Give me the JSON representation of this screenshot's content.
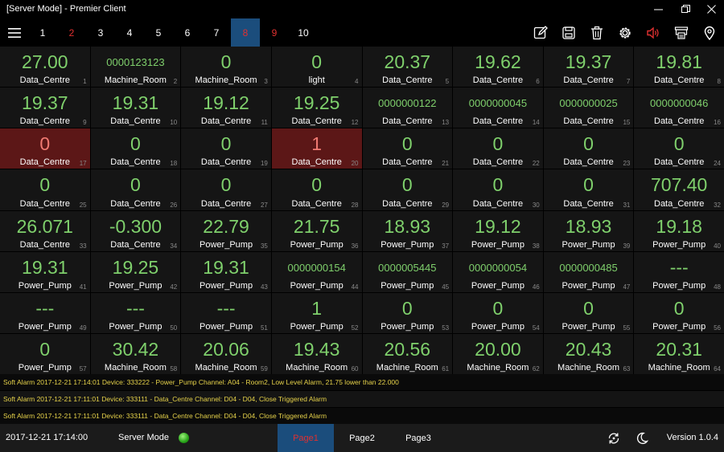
{
  "window": {
    "title": "[Server Mode] - Premier Client"
  },
  "toolbar": {
    "page_tabs": [
      {
        "label": "1",
        "state": "normal"
      },
      {
        "label": "2",
        "state": "alarm"
      },
      {
        "label": "3",
        "state": "normal"
      },
      {
        "label": "4",
        "state": "normal"
      },
      {
        "label": "5",
        "state": "normal"
      },
      {
        "label": "6",
        "state": "normal"
      },
      {
        "label": "7",
        "state": "normal"
      },
      {
        "label": "8",
        "state": "active"
      },
      {
        "label": "9",
        "state": "alarm"
      },
      {
        "label": "10",
        "state": "normal"
      }
    ],
    "icons": [
      "edit-icon",
      "save-icon",
      "trash-icon",
      "gear-icon",
      "speaker-alarm-icon",
      "printer-icon",
      "location-pin-icon"
    ]
  },
  "colors": {
    "value_green": "#7fd06c",
    "alarm_red": "#5c1717",
    "active_tab": "#1b4d7c",
    "alarm_text": "#e6d24a"
  },
  "grid": {
    "cells": [
      {
        "value": "27.00",
        "label": "Data_Centre",
        "num": "1"
      },
      {
        "value": "0000123123",
        "label": "Machine_Room",
        "num": "2",
        "small": true
      },
      {
        "value": "0",
        "label": "Machine_Room",
        "num": "3"
      },
      {
        "value": "0",
        "label": "light",
        "num": "4"
      },
      {
        "value": "20.37",
        "label": "Data_Centre",
        "num": "5"
      },
      {
        "value": "19.62",
        "label": "Data_Centre",
        "num": "6"
      },
      {
        "value": "19.37",
        "label": "Data_Centre",
        "num": "7"
      },
      {
        "value": "19.81",
        "label": "Data_Centre",
        "num": "8"
      },
      {
        "value": "19.37",
        "label": "Data_Centre",
        "num": "9"
      },
      {
        "value": "19.31",
        "label": "Data_Centre",
        "num": "10"
      },
      {
        "value": "19.12",
        "label": "Data_Centre",
        "num": "11"
      },
      {
        "value": "19.25",
        "label": "Data_Centre",
        "num": "12"
      },
      {
        "value": "0000000122",
        "label": "Data_Centre",
        "num": "13",
        "small": true
      },
      {
        "value": "0000000045",
        "label": "Data_Centre",
        "num": "14",
        "small": true
      },
      {
        "value": "0000000025",
        "label": "Data_Centre",
        "num": "15",
        "small": true
      },
      {
        "value": "0000000046",
        "label": "Data_Centre",
        "num": "16",
        "small": true
      },
      {
        "value": "0",
        "label": "Data_Centre",
        "num": "17",
        "alarm": true
      },
      {
        "value": "0",
        "label": "Data_Centre",
        "num": "18"
      },
      {
        "value": "0",
        "label": "Data_Centre",
        "num": "19"
      },
      {
        "value": "1",
        "label": "Data_Centre",
        "num": "20",
        "alarm": true
      },
      {
        "value": "0",
        "label": "Data_Centre",
        "num": "21"
      },
      {
        "value": "0",
        "label": "Data_Centre",
        "num": "22"
      },
      {
        "value": "0",
        "label": "Data_Centre",
        "num": "23"
      },
      {
        "value": "0",
        "label": "Data_Centre",
        "num": "24"
      },
      {
        "value": "0",
        "label": "Data_Centre",
        "num": "25"
      },
      {
        "value": "0",
        "label": "Data_Centre",
        "num": "26"
      },
      {
        "value": "0",
        "label": "Data_Centre",
        "num": "27"
      },
      {
        "value": "0",
        "label": "Data_Centre",
        "num": "28"
      },
      {
        "value": "0",
        "label": "Data_Centre",
        "num": "29"
      },
      {
        "value": "0",
        "label": "Data_Centre",
        "num": "30"
      },
      {
        "value": "0",
        "label": "Data_Centre",
        "num": "31"
      },
      {
        "value": "707.40",
        "label": "Data_Centre",
        "num": "32"
      },
      {
        "value": "26.071",
        "label": "Data_Centre",
        "num": "33"
      },
      {
        "value": "-0.300",
        "label": "Data_Centre",
        "num": "34"
      },
      {
        "value": "22.79",
        "label": "Power_Pump",
        "num": "35"
      },
      {
        "value": "21.75",
        "label": "Power_Pump",
        "num": "36"
      },
      {
        "value": "18.93",
        "label": "Power_Pump",
        "num": "37"
      },
      {
        "value": "19.12",
        "label": "Power_Pump",
        "num": "38"
      },
      {
        "value": "18.93",
        "label": "Power_Pump",
        "num": "39"
      },
      {
        "value": "19.18",
        "label": "Power_Pump",
        "num": "40"
      },
      {
        "value": "19.31",
        "label": "Power_Pump",
        "num": "41"
      },
      {
        "value": "19.25",
        "label": "Power_Pump",
        "num": "42"
      },
      {
        "value": "19.31",
        "label": "Power_Pump",
        "num": "43"
      },
      {
        "value": "0000000154",
        "label": "Power_Pump",
        "num": "44",
        "small": true
      },
      {
        "value": "0000005445",
        "label": "Power_Pump",
        "num": "45",
        "small": true
      },
      {
        "value": "0000000054",
        "label": "Power_Pump",
        "num": "46",
        "small": true
      },
      {
        "value": "0000000485",
        "label": "Power_Pump",
        "num": "47",
        "small": true
      },
      {
        "value": "---",
        "label": "Power_Pump",
        "num": "48"
      },
      {
        "value": "---",
        "label": "Power_Pump",
        "num": "49"
      },
      {
        "value": "---",
        "label": "Power_Pump",
        "num": "50"
      },
      {
        "value": "---",
        "label": "Power_Pump",
        "num": "51"
      },
      {
        "value": "1",
        "label": "Power_Pump",
        "num": "52"
      },
      {
        "value": "0",
        "label": "Power_Pump",
        "num": "53"
      },
      {
        "value": "0",
        "label": "Power_Pump",
        "num": "54"
      },
      {
        "value": "0",
        "label": "Power_Pump",
        "num": "55"
      },
      {
        "value": "0",
        "label": "Power_Pump",
        "num": "56"
      },
      {
        "value": "0",
        "label": "Power_Pump",
        "num": "57"
      },
      {
        "value": "30.42",
        "label": "Machine_Room",
        "num": "58"
      },
      {
        "value": "20.06",
        "label": "Machine_Room",
        "num": "59"
      },
      {
        "value": "19.43",
        "label": "Machine_Room",
        "num": "60"
      },
      {
        "value": "20.56",
        "label": "Machine_Room",
        "num": "61"
      },
      {
        "value": "20.00",
        "label": "Machine_Room",
        "num": "62"
      },
      {
        "value": "20.43",
        "label": "Machine_Room",
        "num": "63"
      },
      {
        "value": "20.31",
        "label": "Machine_Room",
        "num": "64"
      }
    ]
  },
  "alarms": [
    "Soft Alarm 2017-12-21 17:14:01 Device: 333222 - Power_Pump Channel: A04 - Room2, Low Level Alarm, 21.75 lower than 22.000",
    "Soft Alarm 2017-12-21 17:11:01 Device: 333111 - Data_Centre Channel: D04 - D04, Close Triggered Alarm",
    "Soft Alarm 2017-12-21 17:11:01 Device: 333111 - Data_Centre Channel: D04 - D04, Close Triggered Alarm"
  ],
  "status": {
    "datetime": "2017-12-21 17:14:00",
    "mode": "Server Mode",
    "bottom_tabs": [
      {
        "label": "Page1",
        "state": "active"
      },
      {
        "label": "Page2",
        "state": "normal"
      },
      {
        "label": "Page3",
        "state": "normal"
      }
    ],
    "version": "Version 1.0.4"
  }
}
